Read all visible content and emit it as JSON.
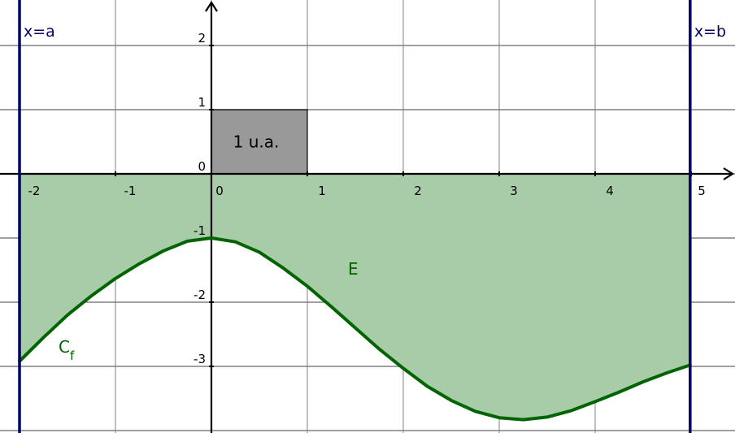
{
  "chart_data": {
    "type": "area",
    "title": "",
    "xlabel": "",
    "ylabel": "",
    "xlim": [
      -2.0,
      5.4
    ],
    "ylim": [
      -4.0,
      2.7
    ],
    "grid": true,
    "x_ticks": [
      -2,
      -1,
      0,
      1,
      2,
      3,
      4,
      5
    ],
    "y_ticks": [
      2,
      1,
      0,
      -1,
      -2,
      -3
    ],
    "x_tick_labels": [
      "-2",
      "-1",
      "0",
      "1",
      "2",
      "3",
      "4",
      "5"
    ],
    "y_tick_labels": [
      "2",
      "1",
      "0",
      "-1",
      "-2",
      "-3"
    ],
    "vertical_lines": [
      {
        "x": -2.0,
        "label": "x=a"
      },
      {
        "x": 4.99,
        "label": "x=b"
      }
    ],
    "series": [
      {
        "name": "C",
        "name_subscript": "f",
        "x": [
          -2.0,
          -1.75,
          -1.5,
          -1.25,
          -1.0,
          -0.75,
          -0.5,
          -0.25,
          0.0,
          0.25,
          0.5,
          0.75,
          1.0,
          1.25,
          1.5,
          1.75,
          2.0,
          2.25,
          2.5,
          2.75,
          3.0,
          3.25,
          3.5,
          3.75,
          4.0,
          4.25,
          4.5,
          4.75,
          4.99
        ],
        "y": [
          -2.92,
          -2.55,
          -2.2,
          -1.9,
          -1.63,
          -1.4,
          -1.2,
          -1.05,
          -1.0,
          -1.06,
          -1.22,
          -1.47,
          -1.75,
          -2.07,
          -2.4,
          -2.73,
          -3.03,
          -3.31,
          -3.53,
          -3.7,
          -3.8,
          -3.83,
          -3.79,
          -3.69,
          -3.55,
          -3.4,
          -3.24,
          -3.1,
          -2.98
        ]
      }
    ],
    "region": {
      "label": "E",
      "between": [
        "x-axis",
        "C"
      ],
      "x_from": -2.0,
      "x_to": 4.99
    },
    "unit_square": {
      "x": [
        0,
        1
      ],
      "y": [
        0,
        1
      ],
      "label": "1 u.a."
    },
    "colors": {
      "curve": "#006400",
      "region_fill": "#a8cba8",
      "unit_square_fill": "#999999",
      "vertical_lines": "#000066",
      "grid": "#808080",
      "axes": "#000000"
    }
  }
}
